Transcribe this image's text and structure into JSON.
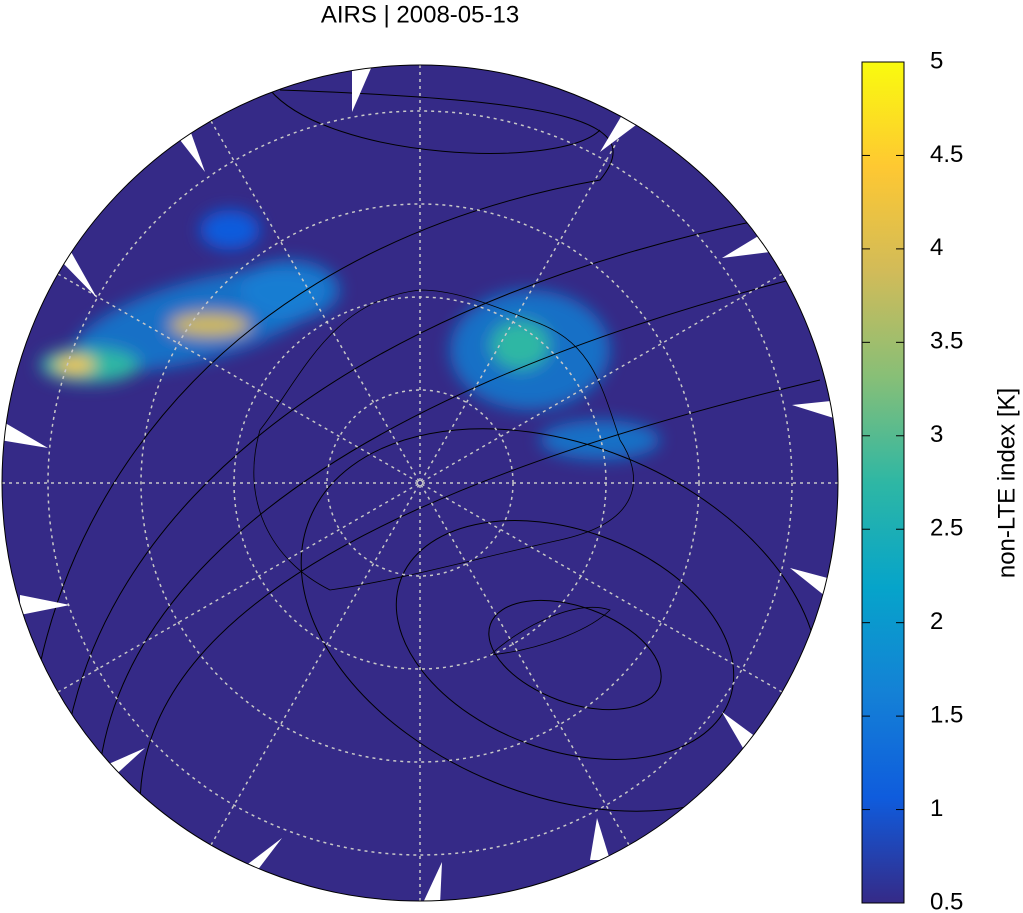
{
  "title": "AIRS | 2008-05-13",
  "colorbar": {
    "label": "non-LTE index [K]",
    "lim": [
      0.5,
      5
    ],
    "ticks": [
      0.5,
      1,
      1.5,
      2,
      2.5,
      3,
      3.5,
      4,
      4.5,
      5
    ],
    "colormap": [
      "#352a87",
      "#0f5cdd",
      "#1481d6",
      "#06a4ca",
      "#2eb7a4",
      "#87bf77",
      "#d1bb59",
      "#fec832",
      "#f9fb0e"
    ]
  }
}
